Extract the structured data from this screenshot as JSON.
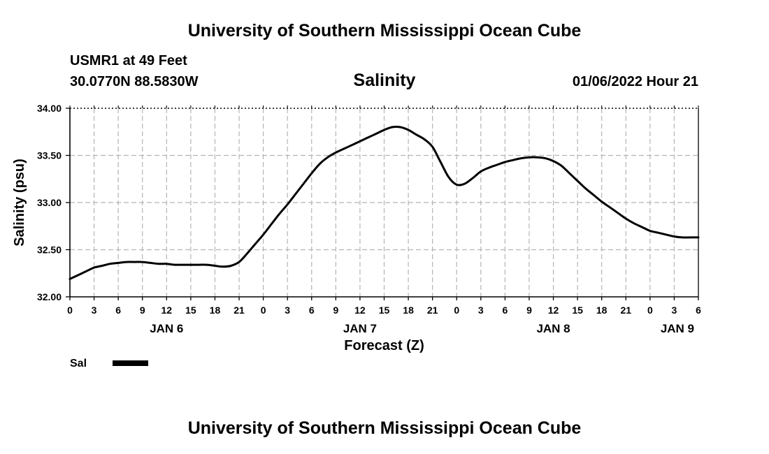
{
  "header": {
    "title": "University of Southern Mississippi Ocean Cube",
    "station": "USMR1 at 49 Feet",
    "coords": "30.0770N  88.5830W",
    "datetime": "01/06/2022 Hour 21",
    "footer_title": "University of Southern Mississippi Ocean Cube"
  },
  "chart_data": {
    "type": "line",
    "title": "Salinity",
    "xlabel": "Forecast (Z)",
    "ylabel": "Salinity (psu)",
    "x_unit": "hours since JAN 6 00Z",
    "xlim": [
      0,
      78
    ],
    "ylim": [
      32.0,
      34.0
    ],
    "grid": true,
    "yticks": [
      32.0,
      32.5,
      33.0,
      33.5,
      34.0
    ],
    "ytick_labels": [
      "32.00",
      "32.50",
      "33.00",
      "33.50",
      "34.00"
    ],
    "xticks": [
      0,
      3,
      6,
      9,
      12,
      15,
      18,
      21,
      24,
      27,
      30,
      33,
      36,
      39,
      42,
      45,
      48,
      51,
      54,
      57,
      60,
      63,
      66,
      69,
      72,
      75,
      78
    ],
    "xtick_labels": [
      "0",
      "3",
      "6",
      "9",
      "12",
      "15",
      "18",
      "21",
      "0",
      "3",
      "6",
      "9",
      "12",
      "15",
      "18",
      "21",
      "0",
      "3",
      "6",
      "9",
      "12",
      "15",
      "18",
      "21",
      "0",
      "3",
      "6"
    ],
    "day_labels": [
      {
        "x": 12,
        "label": "JAN 6"
      },
      {
        "x": 36,
        "label": "JAN 7"
      },
      {
        "x": 60,
        "label": "JAN 8"
      },
      {
        "x": 78,
        "label": "JAN 9"
      }
    ],
    "series": [
      {
        "name": "Sal",
        "color": "#000000",
        "x": [
          0,
          1,
          2,
          3,
          4,
          5,
          6,
          7,
          8,
          9,
          10,
          11,
          12,
          13,
          14,
          15,
          16,
          17,
          18,
          19,
          20,
          21,
          22,
          23,
          24,
          25,
          26,
          27,
          28,
          29,
          30,
          31,
          32,
          33,
          34,
          35,
          36,
          37,
          38,
          39,
          40,
          41,
          42,
          43,
          44,
          45,
          46,
          47,
          48,
          49,
          50,
          51,
          52,
          53,
          54,
          55,
          56,
          57,
          58,
          59,
          60,
          61,
          62,
          63,
          64,
          65,
          66,
          67,
          68,
          69,
          70,
          71,
          72,
          73,
          74,
          75,
          76,
          77,
          78
        ],
        "values": [
          32.19,
          32.23,
          32.27,
          32.31,
          32.33,
          32.35,
          32.36,
          32.37,
          32.37,
          32.37,
          32.36,
          32.35,
          32.35,
          32.34,
          32.34,
          32.34,
          32.34,
          32.34,
          32.33,
          32.32,
          32.33,
          32.37,
          32.46,
          32.56,
          32.66,
          32.77,
          32.88,
          32.98,
          33.09,
          33.2,
          33.31,
          33.41,
          33.48,
          33.53,
          33.57,
          33.61,
          33.65,
          33.69,
          33.73,
          33.77,
          33.8,
          33.8,
          33.77,
          33.72,
          33.67,
          33.59,
          33.43,
          33.27,
          33.19,
          33.2,
          33.26,
          33.33,
          33.37,
          33.4,
          33.43,
          33.45,
          33.47,
          33.48,
          33.48,
          33.47,
          33.44,
          33.39,
          33.31,
          33.23,
          33.15,
          33.08,
          33.01,
          32.95,
          32.89,
          32.83,
          32.78,
          32.74,
          32.7,
          32.68,
          32.66,
          32.64,
          32.63,
          32.63,
          32.63
        ]
      }
    ],
    "legend": "bottom-left"
  }
}
